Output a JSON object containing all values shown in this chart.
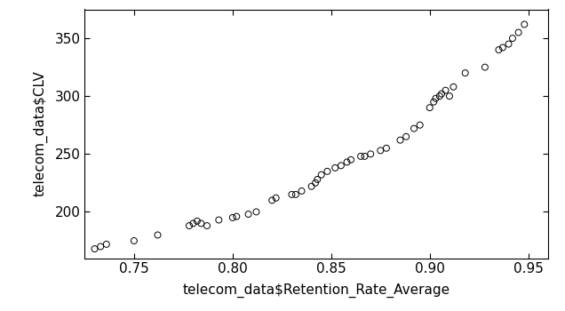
{
  "x": [
    0.73,
    0.733,
    0.736,
    0.75,
    0.762,
    0.778,
    0.78,
    0.782,
    0.784,
    0.787,
    0.793,
    0.8,
    0.802,
    0.808,
    0.812,
    0.82,
    0.822,
    0.83,
    0.832,
    0.835,
    0.84,
    0.842,
    0.843,
    0.845,
    0.848,
    0.852,
    0.855,
    0.858,
    0.86,
    0.865,
    0.867,
    0.87,
    0.875,
    0.878,
    0.885,
    0.888,
    0.892,
    0.895,
    0.9,
    0.902,
    0.903,
    0.905,
    0.906,
    0.908,
    0.91,
    0.912,
    0.918,
    0.928,
    0.935,
    0.937,
    0.94,
    0.942,
    0.945,
    0.948
  ],
  "y": [
    168,
    170,
    172,
    175,
    180,
    188,
    190,
    192,
    190,
    188,
    193,
    195,
    196,
    198,
    200,
    210,
    212,
    215,
    215,
    218,
    222,
    225,
    228,
    232,
    235,
    238,
    240,
    243,
    245,
    248,
    248,
    250,
    253,
    255,
    262,
    265,
    272,
    275,
    290,
    295,
    298,
    300,
    302,
    305,
    300,
    308,
    320,
    325,
    340,
    342,
    345,
    350,
    355,
    362
  ],
  "xlim": [
    0.725,
    0.96
  ],
  "ylim": [
    160,
    375
  ],
  "xticks": [
    0.75,
    0.8,
    0.85,
    0.9,
    0.95
  ],
  "yticks": [
    200,
    250,
    300,
    350
  ],
  "xlabel": "telecom_data$Retention_Rate_Average",
  "ylabel": "telecom_data$CLV",
  "bg_color": "#ffffff",
  "marker_facecolor": "none",
  "marker_edge_color": "#000000",
  "marker_size": 5,
  "tick_labelsize": 11,
  "xlabel_fontsize": 11,
  "ylabel_fontsize": 11
}
